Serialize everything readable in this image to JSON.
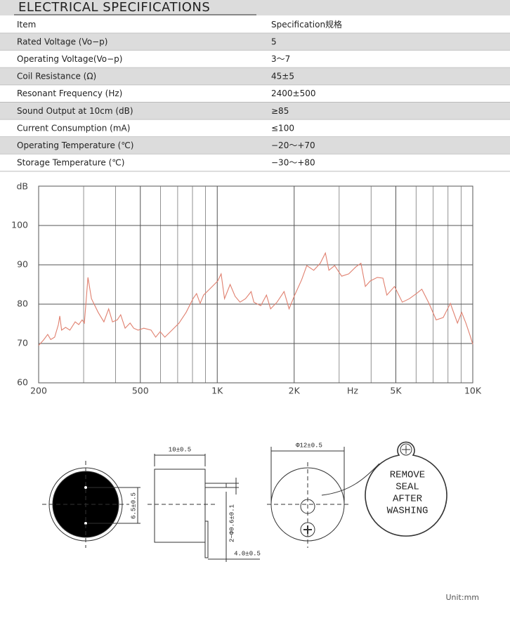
{
  "header": {
    "title": "ELECTRICAL SPECIFICATIONS"
  },
  "table": {
    "header": [
      "Item",
      "Specification规格"
    ],
    "rows": [
      [
        "Rated Voltage (Vo−p)",
        "5"
      ],
      [
        "Operating Voltage(Vo−p)",
        "3～7"
      ],
      [
        "Coil Resistance (Ω)",
        "45±5"
      ],
      [
        "Resonant Frequency (Hz)",
        "2400±500"
      ],
      [
        "Sound Output at 10cm (dB)",
        "≥85"
      ],
      [
        "Current Consumption (mA)",
        "≤100"
      ],
      [
        "Operating Temperature (℃)",
        "−20～+70"
      ],
      [
        "Storage Temperature (℃)",
        "−30～+80"
      ]
    ]
  },
  "chart_data": {
    "type": "line",
    "ylabel": "dB",
    "xlabel": "Hz",
    "xscale": "log",
    "grid": true,
    "xlim": [
      200,
      10000
    ],
    "ylim": [
      60,
      110
    ],
    "xticks": [
      200,
      500,
      {
        "value": 1000,
        "label": "1K"
      },
      {
        "value": 2000,
        "label": "2K"
      },
      {
        "value": 5000,
        "label": "5K"
      },
      {
        "value": 10000,
        "label": "10K"
      }
    ],
    "xminor": [
      300,
      400,
      600,
      700,
      800,
      900,
      3000,
      4000,
      6000,
      7000,
      8000,
      9000
    ],
    "yticks": [
      60,
      70,
      80,
      90,
      100
    ],
    "x": [
      200,
      209,
      217,
      223,
      231,
      239,
      242,
      246,
      255,
      265,
      278,
      287,
      296,
      302,
      312,
      322,
      342,
      360,
      376,
      389,
      406,
      419,
      436,
      456,
      471,
      490,
      516,
      551,
      574,
      598,
      624,
      665,
      709,
      755,
      804,
      830,
      857,
      884,
      943,
      1004,
      1036,
      1068,
      1123,
      1175,
      1228,
      1290,
      1357,
      1391,
      1480,
      1558,
      1617,
      1713,
      1826,
      1910,
      2010,
      2140,
      2240,
      2385,
      2530,
      2650,
      2735,
      2880,
      3070,
      3270,
      3490,
      3650,
      3800,
      3970,
      4230,
      4450,
      4610,
      4940,
      5300,
      5650,
      6020,
      6320,
      6740,
      7190,
      7660,
      8170,
      8710,
      9050,
      9400,
      9760,
      10000
    ],
    "series": [
      {
        "color": "#e0806f",
        "values": [
          69.5,
          70.9,
          72.3,
          71,
          71.6,
          74.8,
          77,
          73.4,
          74.1,
          73.4,
          75.5,
          74.8,
          76,
          75.2,
          86.8,
          81.4,
          77.9,
          75.5,
          78.8,
          75.5,
          76,
          77.3,
          73.9,
          75.2,
          73.9,
          73.4,
          73.9,
          73.4,
          71.6,
          73,
          71.6,
          73.4,
          75.2,
          77.9,
          81.4,
          82.7,
          80.2,
          82.3,
          84.1,
          85.9,
          87.7,
          81.4,
          85,
          82,
          80.5,
          81.4,
          83.2,
          80.5,
          79.6,
          82.3,
          78.8,
          80.5,
          83.2,
          78.8,
          82.3,
          86.2,
          89.8,
          88.6,
          90.4,
          93,
          88.6,
          89.8,
          87.1,
          87.7,
          89.5,
          90.4,
          84.5,
          85.9,
          86.8,
          86.6,
          82.3,
          84.5,
          80.5,
          81.4,
          82.7,
          83.8,
          80.2,
          76,
          76.6,
          80.2,
          75.2,
          77.9,
          75.2,
          72,
          69.8
        ]
      }
    ]
  },
  "diagram": {
    "labels": [
      "10±0.5",
      "6.5±0.5",
      "2−Φ0.6±0.1",
      "4.0±0.5",
      "Φ12±0.5"
    ],
    "seal": [
      "REMOVE",
      "SEAL",
      "AFTER",
      "WASHING"
    ],
    "unit": "Unit:mm"
  }
}
